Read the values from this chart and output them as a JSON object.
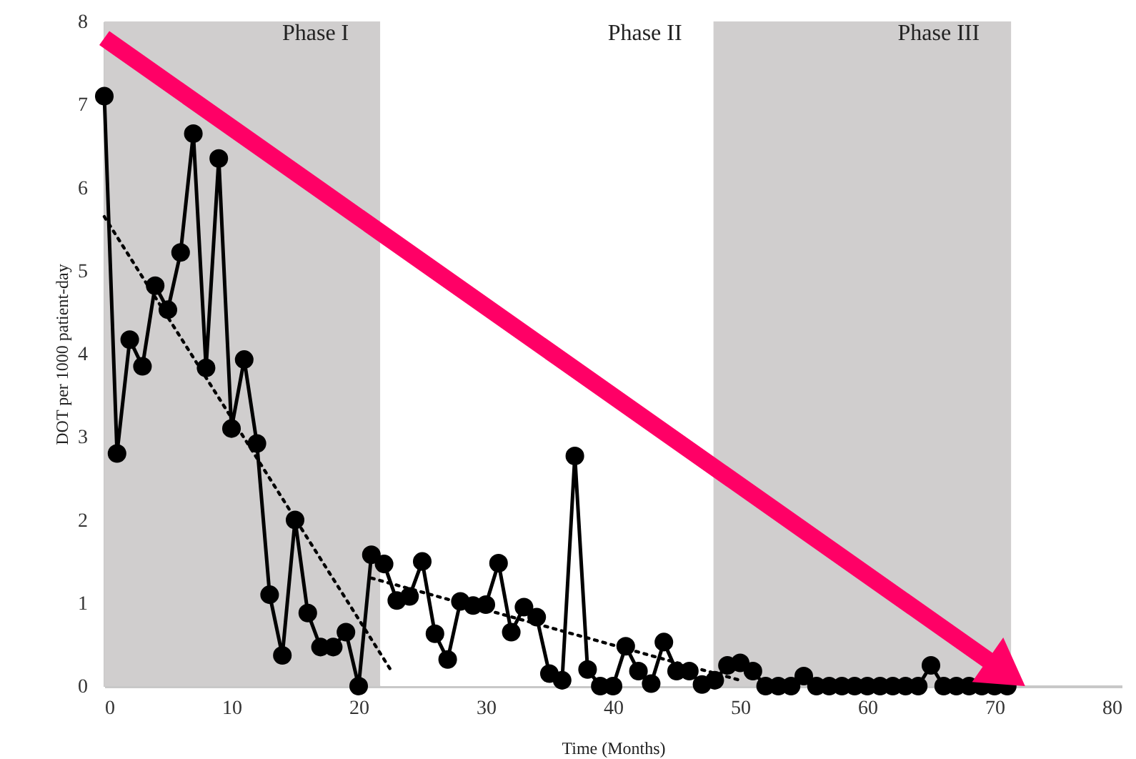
{
  "chart_data": {
    "type": "line",
    "xlabel": "Time (Months)",
    "ylabel": "DOT per 1000 patient-day",
    "xlim": [
      0,
      80
    ],
    "xticks": [
      0,
      10,
      20,
      30,
      40,
      50,
      60,
      70,
      80
    ],
    "ylim": [
      0,
      8
    ],
    "yticks": [
      0,
      1,
      2,
      3,
      4,
      5,
      6,
      7,
      8
    ],
    "grid": false,
    "series": [
      {
        "color": "#000000",
        "marker": "circle",
        "line_style": "solid",
        "x": [
          0,
          1,
          2,
          3,
          4,
          5,
          6,
          7,
          8,
          9,
          10,
          11,
          12,
          13,
          14,
          15,
          16,
          17,
          18,
          19,
          20,
          21,
          22,
          23,
          24,
          25,
          26,
          27,
          28,
          29,
          30,
          31,
          32,
          33,
          34,
          35,
          36,
          37,
          38,
          39,
          40,
          41,
          42,
          43,
          44,
          45,
          46,
          47,
          48,
          49,
          50,
          51,
          52,
          53,
          54,
          55,
          56,
          57,
          58,
          59,
          60,
          61,
          62,
          63,
          64,
          65,
          66,
          67,
          68,
          69,
          70,
          71
        ],
        "values": [
          7.1,
          2.8,
          4.17,
          3.85,
          4.82,
          4.53,
          5.22,
          6.65,
          3.83,
          6.35,
          3.1,
          3.93,
          2.92,
          1.1,
          0.37,
          2.0,
          0.88,
          0.47,
          0.47,
          0.65,
          0,
          1.58,
          1.47,
          1.03,
          1.08,
          1.5,
          0.63,
          0.32,
          1.02,
          0.97,
          0.98,
          1.48,
          0.65,
          0.95,
          0.83,
          0.15,
          0.07,
          2.77,
          0.2,
          0,
          0,
          0.48,
          0.18,
          0.03,
          0.53,
          0.18,
          0.18,
          0.02,
          0.07,
          0.25,
          0.28,
          0.18,
          0,
          0,
          0,
          0.12,
          0,
          0,
          0,
          0,
          0,
          0,
          0,
          0,
          0,
          0.25,
          0,
          0,
          0,
          0,
          0,
          0
        ]
      },
      {
        "type": "line",
        "color": "#000000",
        "marker": "none",
        "line_style": "dotted",
        "x": [
          0,
          22.5
        ],
        "values": [
          5.65,
          0.2
        ]
      },
      {
        "type": "line",
        "color": "#000000",
        "marker": "none",
        "line_style": "dotted",
        "x": [
          21,
          50
        ],
        "values": [
          1.3,
          0.07
        ]
      }
    ],
    "bands": [
      {
        "axis": "x",
        "from": 0,
        "to": 21.7,
        "label": "Phase I",
        "color": "#d0cece"
      },
      {
        "axis": "x",
        "from": 21.7,
        "to": 47.9,
        "label": "Phase II",
        "color": "#ffffff"
      },
      {
        "axis": "x",
        "from": 47.9,
        "to": 71.3,
        "label": "Phase III",
        "color": "#d0cece"
      }
    ]
  }
}
